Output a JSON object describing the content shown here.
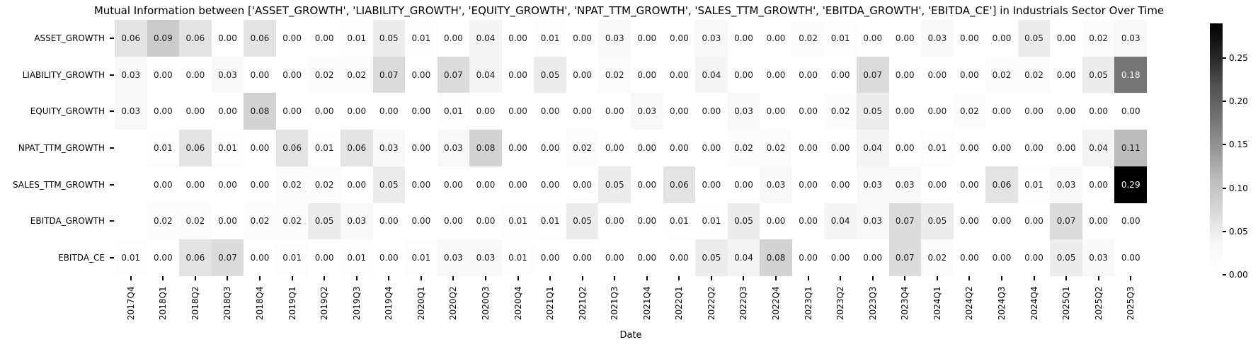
{
  "chart_data": {
    "type": "heatmap",
    "title": "Mutual Information between ['ASSET_GROWTH', 'LIABILITY_GROWTH', 'EQUITY_GROWTH', 'NPAT_TTM_GROWTH', 'SALES_TTM_GROWTH', 'EBITDA_GROWTH', 'EBITDA_CE'] in Industrials Sector Over Time",
    "xlabel": "Date",
    "x_categories": [
      "2017Q4",
      "2018Q1",
      "2018Q2",
      "2018Q3",
      "2018Q4",
      "2019Q1",
      "2019Q2",
      "2019Q3",
      "2019Q4",
      "2020Q1",
      "2020Q2",
      "2020Q3",
      "2020Q4",
      "2021Q1",
      "2021Q2",
      "2021Q3",
      "2021Q4",
      "2022Q1",
      "2022Q2",
      "2022Q3",
      "2022Q4",
      "2023Q1",
      "2023Q2",
      "2023Q3",
      "2023Q4",
      "2024Q1",
      "2024Q2",
      "2024Q3",
      "2024Q4",
      "2025Q1",
      "2025Q2",
      "2025Q3"
    ],
    "y_categories": [
      "ASSET_GROWTH",
      "LIABILITY_GROWTH",
      "EQUITY_GROWTH",
      "NPAT_TTM_GROWTH",
      "SALES_TTM_GROWTH",
      "EBITDA_GROWTH",
      "EBITDA_CE"
    ],
    "matrix": [
      [
        0.06,
        0.09,
        0.06,
        0.0,
        0.06,
        0.0,
        0.0,
        0.01,
        0.05,
        0.01,
        0.0,
        0.04,
        0.0,
        0.01,
        0.0,
        0.03,
        0.0,
        0.0,
        0.03,
        0.0,
        0.0,
        0.02,
        0.01,
        0.0,
        0.0,
        0.03,
        0.0,
        0.0,
        0.05,
        0.0,
        0.02,
        0.03
      ],
      [
        0.03,
        0.0,
        0.0,
        0.03,
        0.0,
        0.0,
        0.02,
        0.02,
        0.07,
        0.0,
        0.07,
        0.04,
        0.0,
        0.05,
        0.0,
        0.02,
        0.0,
        0.0,
        0.04,
        0.0,
        0.0,
        0.0,
        0.0,
        0.07,
        0.0,
        0.0,
        0.0,
        0.02,
        0.02,
        0.0,
        0.05,
        0.18
      ],
      [
        0.03,
        0.0,
        0.0,
        0.0,
        0.08,
        0.0,
        0.0,
        0.0,
        0.0,
        0.0,
        0.01,
        0.0,
        0.0,
        0.0,
        0.0,
        0.0,
        0.03,
        0.0,
        0.0,
        0.03,
        0.0,
        0.0,
        0.02,
        0.05,
        0.0,
        0.0,
        0.02,
        0.0,
        0.0,
        0.0,
        0.0,
        0.0
      ],
      [
        null,
        0.01,
        0.06,
        0.01,
        0.0,
        0.06,
        0.01,
        0.06,
        0.03,
        0.0,
        0.03,
        0.08,
        0.0,
        0.0,
        0.02,
        0.0,
        0.0,
        0.0,
        0.0,
        0.02,
        0.02,
        0.0,
        0.0,
        0.04,
        0.0,
        0.01,
        0.0,
        0.0,
        0.0,
        0.0,
        0.04,
        0.11
      ],
      [
        null,
        0.0,
        0.0,
        0.0,
        0.0,
        0.02,
        0.02,
        0.0,
        0.05,
        0.0,
        0.0,
        0.0,
        0.0,
        0.0,
        0.0,
        0.05,
        0.0,
        0.06,
        0.0,
        0.0,
        0.03,
        0.0,
        0.0,
        0.03,
        0.03,
        0.0,
        0.0,
        0.06,
        0.01,
        0.03,
        0.0,
        0.29
      ],
      [
        null,
        0.02,
        0.02,
        0.0,
        0.02,
        0.02,
        0.05,
        0.03,
        0.0,
        0.0,
        0.0,
        0.0,
        0.01,
        0.01,
        0.05,
        0.0,
        0.0,
        0.01,
        0.01,
        0.05,
        0.0,
        0.0,
        0.04,
        0.03,
        0.07,
        0.05,
        0.0,
        0.0,
        0.0,
        0.07,
        0.0,
        0.0
      ],
      [
        0.01,
        0.0,
        0.06,
        0.07,
        0.0,
        0.01,
        0.0,
        0.01,
        0.0,
        0.01,
        0.03,
        0.03,
        0.01,
        0.0,
        0.0,
        0.0,
        0.0,
        0.0,
        0.05,
        0.04,
        0.08,
        0.0,
        0.0,
        0.0,
        0.07,
        0.02,
        0.0,
        0.0,
        0.0,
        0.05,
        0.03,
        0.0
      ]
    ],
    "vmin": 0.0,
    "vmax": 0.29,
    "colorbar_ticks": [
      "0.00",
      "0.05",
      "0.10",
      "0.15",
      "0.20",
      "0.25"
    ],
    "colormap": "Greys",
    "legend_position": "right",
    "grid": false,
    "colors": {
      "cmap_min": "#ffffff",
      "cmap_max": "#000000",
      "annotation_dark": "#1a1a1a",
      "annotation_light": "#ffffff"
    }
  }
}
